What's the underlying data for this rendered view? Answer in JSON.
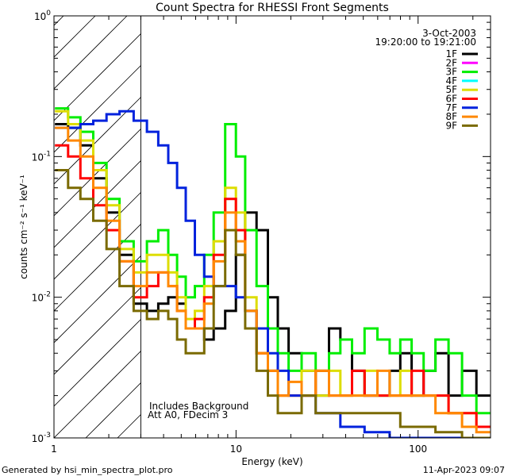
{
  "chart_data": {
    "type": "line",
    "title": "Count Spectra for RHESSI Front Segments",
    "xlabel": "Energy (keV)",
    "ylabel": "counts cm⁻² s⁻¹ keV⁻¹",
    "xscale": "log",
    "yscale": "log",
    "xlim": [
      1,
      250
    ],
    "ylim": [
      0.001,
      1
    ],
    "x_ticks": [
      {
        "v": 1,
        "label": "1"
      },
      {
        "v": 10,
        "label": "10"
      },
      {
        "v": 100,
        "label": "100"
      }
    ],
    "y_ticks": [
      {
        "v": 1,
        "base": "10",
        "exp": "0"
      },
      {
        "v": 0.1,
        "base": "10",
        "exp": "-1"
      },
      {
        "v": 0.01,
        "base": "10",
        "exp": "-2"
      },
      {
        "v": 0.001,
        "base": "10",
        "exp": "-3"
      }
    ],
    "date": "3-Oct-2003",
    "time_range": "19:20:00 to 19:21:00",
    "annotation_lines": [
      "Includes Background",
      "Att A0, FDecim 3"
    ],
    "hatched_region_max_energy": 3,
    "series": [
      {
        "name": "1F",
        "color": "#000000",
        "values": [
          0.17,
          0.16,
          0.12,
          0.07,
          0.04,
          0.02,
          0.009,
          0.008,
          0.009,
          0.01,
          0.009,
          0.006,
          0.006,
          0.005,
          0.006,
          0.008,
          0.02,
          0.04,
          0.03,
          0.01,
          0.006,
          0.004,
          0.003,
          0.002,
          0.006,
          0.005,
          0.003,
          0.002,
          0.002,
          0.003,
          0.004,
          0.002,
          0.003,
          0.004,
          0.002,
          0.003,
          0.002
        ]
      },
      {
        "name": "2F",
        "color": "#ff00ff",
        "values": []
      },
      {
        "name": "3F",
        "color": "#00ee00",
        "values": [
          0.22,
          0.19,
          0.15,
          0.09,
          0.05,
          0.025,
          0.018,
          0.025,
          0.03,
          0.02,
          0.014,
          0.01,
          0.012,
          0.02,
          0.04,
          0.17,
          0.1,
          0.03,
          0.012,
          0.006,
          0.004,
          0.003,
          0.004,
          0.003,
          0.004,
          0.005,
          0.004,
          0.006,
          0.005,
          0.004,
          0.005,
          0.004,
          0.003,
          0.005,
          0.004,
          0.002,
          0.0015
        ]
      },
      {
        "name": "4F",
        "color": "#00ffff",
        "values": []
      },
      {
        "name": "5F",
        "color": "#dddd00",
        "values": [
          0.21,
          0.17,
          0.13,
          0.08,
          0.045,
          0.022,
          0.015,
          0.02,
          0.02,
          0.015,
          0.01,
          0.007,
          0.008,
          0.012,
          0.025,
          0.06,
          0.04,
          0.01,
          0.004,
          0.003,
          0.002,
          0.002,
          0.003,
          0.002,
          0.003,
          0.002,
          0.002,
          0.003,
          0.002,
          0.002,
          0.003,
          0.002,
          0.002,
          0.002,
          0.0015,
          0.0015,
          0.0012
        ]
      },
      {
        "name": "6F",
        "color": "#ff0000",
        "values": [
          0.12,
          0.1,
          0.07,
          0.045,
          0.03,
          0.018,
          0.01,
          0.012,
          0.015,
          0.012,
          0.008,
          0.006,
          0.007,
          0.01,
          0.02,
          0.05,
          0.03,
          0.008,
          0.004,
          0.003,
          0.002,
          0.002,
          0.002,
          0.003,
          0.002,
          0.002,
          0.003,
          0.002,
          0.002,
          0.002,
          0.002,
          0.003,
          0.002,
          0.002,
          0.0015,
          0.0015,
          0.0012
        ]
      },
      {
        "name": "7F",
        "color": "#0022dd",
        "values": [
          0.16,
          0.16,
          0.17,
          0.18,
          0.2,
          0.21,
          0.18,
          0.15,
          0.12,
          0.09,
          0.06,
          0.035,
          0.02,
          0.014,
          0.012,
          0.012,
          0.01,
          0.008,
          0.006,
          0.004,
          0.003,
          0.002,
          0.002,
          0.0015,
          0.0015,
          0.0012,
          0.0012,
          0.0011,
          0.0011,
          0.001,
          0.001,
          0.001,
          0.001,
          0.001,
          0.001,
          0.001,
          0.001
        ]
      },
      {
        "name": "8F",
        "color": "#ff8800",
        "values": [
          0.16,
          0.13,
          0.1,
          0.06,
          0.035,
          0.018,
          0.012,
          0.015,
          0.015,
          0.012,
          0.008,
          0.006,
          0.006,
          0.009,
          0.018,
          0.04,
          0.025,
          0.008,
          0.004,
          0.003,
          0.002,
          0.0025,
          0.002,
          0.003,
          0.002,
          0.002,
          0.002,
          0.002,
          0.003,
          0.002,
          0.002,
          0.002,
          0.002,
          0.0015,
          0.0015,
          0.0012,
          0.0011
        ]
      },
      {
        "name": "9F",
        "color": "#7a6a00",
        "values": [
          0.08,
          0.06,
          0.05,
          0.035,
          0.022,
          0.012,
          0.008,
          0.007,
          0.008,
          0.007,
          0.005,
          0.004,
          0.004,
          0.006,
          0.012,
          0.03,
          0.02,
          0.006,
          0.003,
          0.002,
          0.0015,
          0.0015,
          0.002,
          0.0015,
          0.0015,
          0.0015,
          0.0015,
          0.0015,
          0.0015,
          0.0015,
          0.0012,
          0.0012,
          0.0012,
          0.0011,
          0.0011,
          0.001,
          0.001
        ]
      }
    ],
    "energy_bins": [
      1.1,
      1.3,
      1.5,
      1.8,
      2.1,
      2.5,
      3.0,
      3.5,
      4.0,
      4.5,
      5.0,
      5.6,
      6.3,
      7.1,
      8.0,
      9.5,
      10.5,
      12,
      14,
      16,
      18,
      21,
      25,
      30,
      35,
      40,
      47,
      55,
      65,
      75,
      85,
      100,
      115,
      135,
      160,
      190,
      230
    ]
  },
  "footer": {
    "generated_by": "Generated by hsi_min_spectra_plot.pro",
    "timestamp": "11-Apr-2023 09:07"
  },
  "colors": {
    "background": "#ffffff",
    "axis": "#000000"
  }
}
